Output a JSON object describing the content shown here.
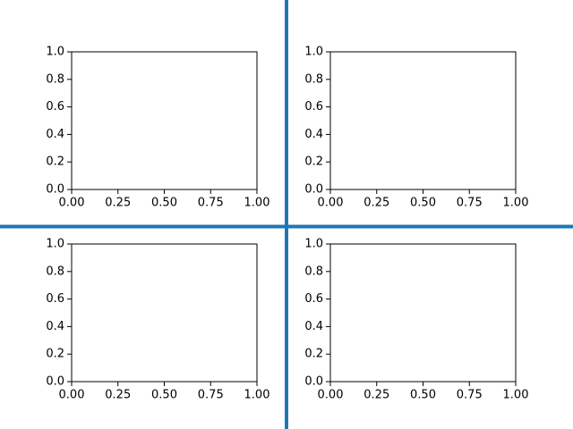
{
  "chart_data": [
    {
      "type": "line",
      "xlim": [
        0,
        1
      ],
      "ylim": [
        0,
        1
      ],
      "xticks": [
        {
          "value": 0,
          "label": "0.00"
        },
        {
          "value": 0.25,
          "label": "0.25"
        },
        {
          "value": 0.5,
          "label": "0.50"
        },
        {
          "value": 0.75,
          "label": "0.75"
        },
        {
          "value": 1,
          "label": "1.00"
        }
      ],
      "yticks": [
        {
          "value": 0,
          "label": "0.0"
        },
        {
          "value": 0.2,
          "label": "0.2"
        },
        {
          "value": 0.4,
          "label": "0.4"
        },
        {
          "value": 0.6,
          "label": "0.6"
        },
        {
          "value": 0.8,
          "label": "0.8"
        },
        {
          "value": 1,
          "label": "1.0"
        }
      ]
    },
    {
      "type": "line",
      "xlim": [
        0,
        1
      ],
      "ylim": [
        0,
        1
      ],
      "xticks": [
        {
          "value": 0,
          "label": "0.00"
        },
        {
          "value": 0.25,
          "label": "0.25"
        },
        {
          "value": 0.5,
          "label": "0.50"
        },
        {
          "value": 0.75,
          "label": "0.75"
        },
        {
          "value": 1,
          "label": "1.00"
        }
      ],
      "yticks": [
        {
          "value": 0,
          "label": "0.0"
        },
        {
          "value": 0.2,
          "label": "0.2"
        },
        {
          "value": 0.4,
          "label": "0.4"
        },
        {
          "value": 0.6,
          "label": "0.6"
        },
        {
          "value": 0.8,
          "label": "0.8"
        },
        {
          "value": 1,
          "label": "1.0"
        }
      ]
    },
    {
      "type": "line",
      "xlim": [
        0,
        1
      ],
      "ylim": [
        0,
        1
      ],
      "xticks": [
        {
          "value": 0,
          "label": "0.00"
        },
        {
          "value": 0.25,
          "label": "0.25"
        },
        {
          "value": 0.5,
          "label": "0.50"
        },
        {
          "value": 0.75,
          "label": "0.75"
        },
        {
          "value": 1,
          "label": "1.00"
        }
      ],
      "yticks": [
        {
          "value": 0,
          "label": "0.0"
        },
        {
          "value": 0.2,
          "label": "0.2"
        },
        {
          "value": 0.4,
          "label": "0.4"
        },
        {
          "value": 0.6,
          "label": "0.6"
        },
        {
          "value": 0.8,
          "label": "0.8"
        },
        {
          "value": 1,
          "label": "1.0"
        }
      ]
    },
    {
      "type": "line",
      "xlim": [
        0,
        1
      ],
      "ylim": [
        0,
        1
      ],
      "xticks": [
        {
          "value": 0,
          "label": "0.00"
        },
        {
          "value": 0.25,
          "label": "0.25"
        },
        {
          "value": 0.5,
          "label": "0.50"
        },
        {
          "value": 0.75,
          "label": "0.75"
        },
        {
          "value": 1,
          "label": "1.00"
        }
      ],
      "yticks": [
        {
          "value": 0,
          "label": "0.0"
        },
        {
          "value": 0.2,
          "label": "0.2"
        },
        {
          "value": 0.4,
          "label": "0.4"
        },
        {
          "value": 0.6,
          "label": "0.6"
        },
        {
          "value": 0.8,
          "label": "0.8"
        },
        {
          "value": 1,
          "label": "1.0"
        }
      ]
    }
  ]
}
